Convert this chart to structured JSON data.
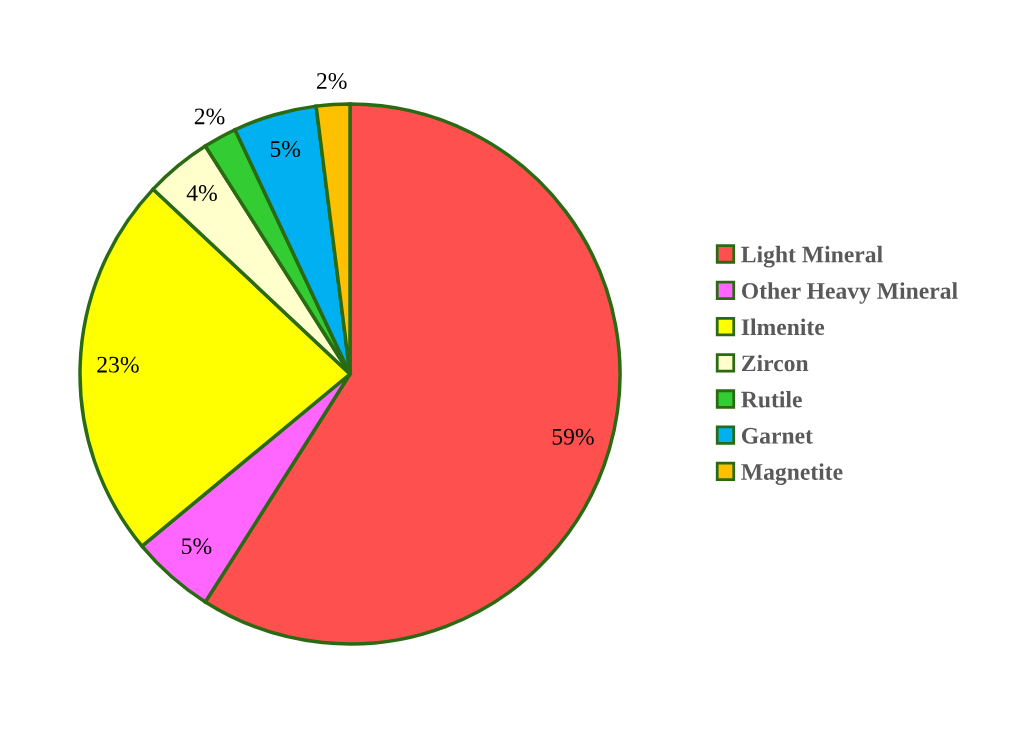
{
  "chart_data": {
    "type": "pie",
    "categories": [
      "Light Mineral",
      "Other Heavy Mineral",
      "Ilmenite",
      "Zircon",
      "Rutile",
      "Garnet",
      "Magnetite"
    ],
    "values": [
      59,
      5,
      23,
      4,
      2,
      5,
      2
    ],
    "colors": [
      "#ff5050",
      "#ff66ff",
      "#ffff00",
      "#ffffcc",
      "#33cc33",
      "#00b0f0",
      "#ffc000"
    ],
    "value_labels": [
      "59%",
      "5%",
      "23%",
      "4%",
      "2%",
      "5%",
      "2%"
    ],
    "legend": "right"
  }
}
